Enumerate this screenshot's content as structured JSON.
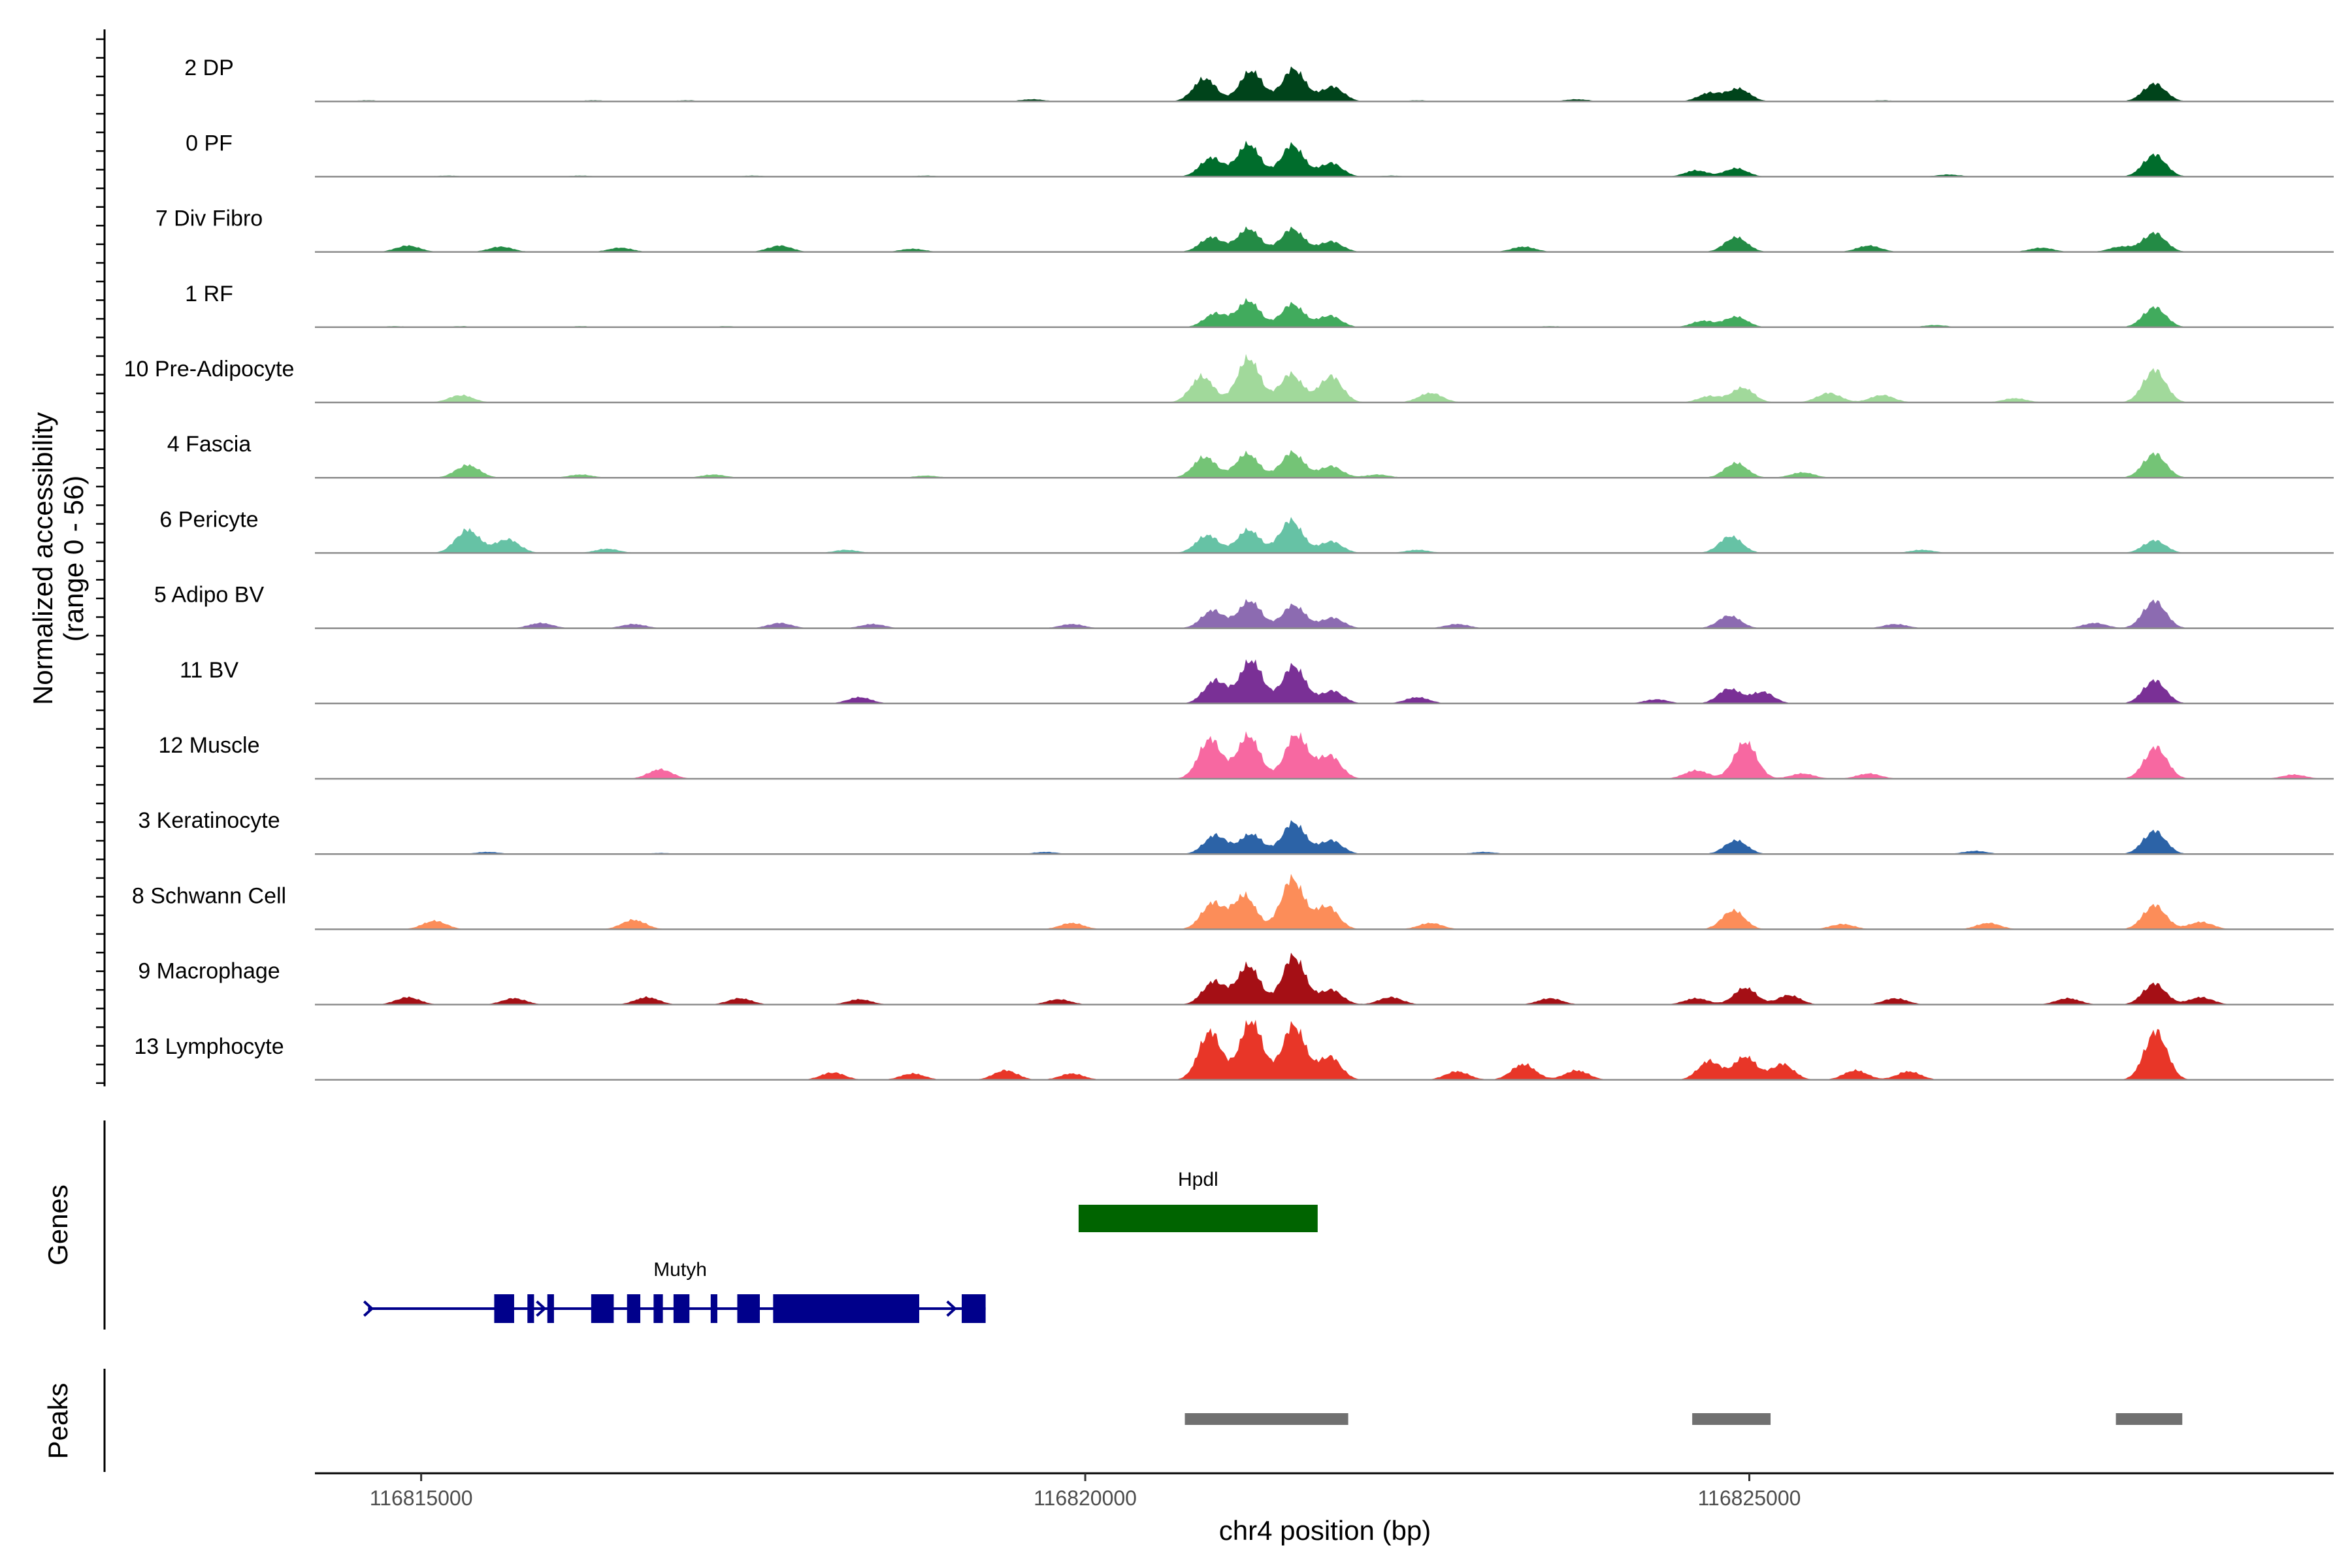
{
  "chart_data": {
    "type": "area",
    "title": "",
    "ylabel_line1": "Normalized accessibility",
    "ylabel_line2": "(range 0 - 56)",
    "ylim": [
      0,
      56
    ],
    "xlabel": "chr4 position (bp)",
    "xlim": [
      116814200,
      116829400
    ],
    "xticks": [
      {
        "value": 116815000,
        "label": "116815000"
      },
      {
        "value": 116820000,
        "label": "116820000"
      },
      {
        "value": 116825000,
        "label": "116825000"
      }
    ],
    "panel_labels": {
      "genes": "Genes",
      "peaks": "Peaks"
    },
    "tracks": [
      {
        "label": "2 DP",
        "color": "#00441b",
        "peaks": [
          [
            116820900,
            22
          ],
          [
            116821250,
            29
          ],
          [
            116821570,
            31
          ],
          [
            116821860,
            14
          ],
          [
            116824700,
            8
          ],
          [
            116824920,
            12
          ],
          [
            116828050,
            17
          ]
        ],
        "minor": [
          [
            116814600,
            1
          ],
          [
            116816300,
            1
          ],
          [
            116817000,
            1
          ],
          [
            116819600,
            2
          ],
          [
            116822500,
            1
          ],
          [
            116823700,
            2
          ],
          [
            116826000,
            1
          ]
        ]
      },
      {
        "label": "0 PF",
        "color": "#006d2c",
        "peaks": [
          [
            116820950,
            18
          ],
          [
            116821230,
            31
          ],
          [
            116821560,
            30
          ],
          [
            116821850,
            13
          ],
          [
            116824600,
            6
          ],
          [
            116824900,
            8
          ],
          [
            116828050,
            21
          ]
        ],
        "minor": [
          [
            116815200,
            1
          ],
          [
            116816200,
            1
          ],
          [
            116817500,
            1
          ],
          [
            116818800,
            1
          ],
          [
            116822300,
            1
          ],
          [
            116826500,
            2
          ]
        ]
      },
      {
        "label": "7 Div Fibro",
        "color": "#238b45",
        "peaks": [
          [
            116820950,
            14
          ],
          [
            116821230,
            22
          ],
          [
            116821560,
            22
          ],
          [
            116821850,
            10
          ],
          [
            116824900,
            14
          ],
          [
            116828050,
            18
          ]
        ],
        "minor": [
          [
            116814900,
            6
          ],
          [
            116815600,
            5
          ],
          [
            116816500,
            4
          ],
          [
            116817700,
            6
          ],
          [
            116818700,
            3
          ],
          [
            116823300,
            5
          ],
          [
            116825900,
            6
          ],
          [
            116827200,
            4
          ],
          [
            116827800,
            5
          ]
        ]
      },
      {
        "label": "1 RF",
        "color": "#41ab5d",
        "peaks": [
          [
            116820980,
            13
          ],
          [
            116821230,
            25
          ],
          [
            116821560,
            22
          ],
          [
            116821840,
            11
          ],
          [
            116824650,
            6
          ],
          [
            116824900,
            10
          ],
          [
            116828050,
            19
          ]
        ],
        "minor": [
          [
            116814800,
            1
          ],
          [
            116815300,
            1
          ],
          [
            116816200,
            1
          ],
          [
            116817300,
            1
          ],
          [
            116823500,
            1
          ],
          [
            116826400,
            2
          ]
        ]
      },
      {
        "label": "10 Pre-Adipocyte",
        "color": "#a1d99b",
        "peaks": [
          [
            116820880,
            25
          ],
          [
            116821230,
            42
          ],
          [
            116821550,
            27
          ],
          [
            116821850,
            25
          ],
          [
            116824700,
            6
          ],
          [
            116824950,
            14
          ],
          [
            116828050,
            31
          ]
        ],
        "minor": [
          [
            116815300,
            7
          ],
          [
            116822600,
            9
          ],
          [
            116825600,
            9
          ],
          [
            116826000,
            7
          ],
          [
            116827000,
            4
          ]
        ]
      },
      {
        "label": "4 Fascia",
        "color": "#74c476",
        "peaks": [
          [
            116820900,
            20
          ],
          [
            116821220,
            23
          ],
          [
            116821560,
            24
          ],
          [
            116821850,
            11
          ],
          [
            116824900,
            14
          ],
          [
            116828050,
            23
          ]
        ],
        "minor": [
          [
            116815350,
            12
          ],
          [
            116816200,
            3
          ],
          [
            116817200,
            3
          ],
          [
            116818800,
            2
          ],
          [
            116822200,
            3
          ],
          [
            116825400,
            5
          ]
        ]
      },
      {
        "label": "6 Pericyte",
        "color": "#66c2a5",
        "peaks": [
          [
            116820920,
            17
          ],
          [
            116821230,
            22
          ],
          [
            116821550,
            31
          ],
          [
            116821850,
            11
          ],
          [
            116824860,
            16
          ],
          [
            116828050,
            12
          ]
        ],
        "minor": [
          [
            116815350,
            22
          ],
          [
            116815650,
            13
          ],
          [
            116816400,
            4
          ],
          [
            116818200,
            3
          ],
          [
            116822500,
            3
          ],
          [
            116826300,
            3
          ]
        ]
      },
      {
        "label": "5 Adipo BV",
        "color": "#8c6bb1",
        "peaks": [
          [
            116820960,
            17
          ],
          [
            116821240,
            26
          ],
          [
            116821570,
            22
          ],
          [
            116821860,
            10
          ],
          [
            116824850,
            12
          ],
          [
            116828050,
            26
          ]
        ],
        "minor": [
          [
            116815900,
            5
          ],
          [
            116816600,
            4
          ],
          [
            116817700,
            5
          ],
          [
            116818400,
            4
          ],
          [
            116819900,
            4
          ],
          [
            116822800,
            4
          ],
          [
            116826100,
            4
          ],
          [
            116827600,
            5
          ]
        ]
      },
      {
        "label": "11 BV",
        "color": "#7a3096",
        "peaks": [
          [
            116820980,
            22
          ],
          [
            116821250,
            41
          ],
          [
            116821570,
            36
          ],
          [
            116821860,
            12
          ],
          [
            116824850,
            14
          ],
          [
            116825100,
            11
          ],
          [
            116828050,
            22
          ]
        ],
        "minor": [
          [
            116818300,
            6
          ],
          [
            116822500,
            6
          ],
          [
            116824300,
            4
          ]
        ]
      },
      {
        "label": "12 Muscle",
        "color": "#f768a1",
        "peaks": [
          [
            116820940,
            38
          ],
          [
            116821230,
            41
          ],
          [
            116821590,
            42
          ],
          [
            116821840,
            22
          ],
          [
            116824970,
            35
          ],
          [
            116828060,
            30
          ]
        ],
        "minor": [
          [
            116816800,
            9
          ],
          [
            116824600,
            8
          ],
          [
            116825400,
            5
          ],
          [
            116825900,
            5
          ],
          [
            116829100,
            4
          ]
        ]
      },
      {
        "label": "3 Keratinocyte",
        "color": "#2c63a7",
        "peaks": [
          [
            116820980,
            18
          ],
          [
            116821250,
            19
          ],
          [
            116821570,
            30
          ],
          [
            116821850,
            13
          ],
          [
            116824900,
            13
          ],
          [
            116828050,
            22
          ]
        ],
        "minor": [
          [
            116815500,
            2
          ],
          [
            116816800,
            1
          ],
          [
            116819700,
            2
          ],
          [
            116823000,
            2
          ],
          [
            116826700,
            3
          ]
        ]
      },
      {
        "label": "8 Schwann Cell",
        "color": "#fc8d59",
        "peaks": [
          [
            116820960,
            25
          ],
          [
            116821200,
            32
          ],
          [
            116821560,
            48
          ],
          [
            116821820,
            22
          ],
          [
            116824880,
            18
          ],
          [
            116828050,
            23
          ]
        ],
        "minor": [
          [
            116815100,
            8
          ],
          [
            116816600,
            9
          ],
          [
            116819900,
            6
          ],
          [
            116822600,
            6
          ],
          [
            116825700,
            5
          ],
          [
            116826800,
            6
          ],
          [
            116828400,
            7
          ]
        ]
      },
      {
        "label": "9 Macrophage",
        "color": "#a50f15",
        "peaks": [
          [
            116820970,
            22
          ],
          [
            116821230,
            37
          ],
          [
            116821570,
            46
          ],
          [
            116821850,
            14
          ],
          [
            116824970,
            16
          ],
          [
            116825300,
            9
          ],
          [
            116828050,
            20
          ]
        ],
        "minor": [
          [
            116814900,
            7
          ],
          [
            116815700,
            6
          ],
          [
            116816700,
            7
          ],
          [
            116817400,
            6
          ],
          [
            116818300,
            5
          ],
          [
            116819800,
            5
          ],
          [
            116822300,
            7
          ],
          [
            116823500,
            6
          ],
          [
            116824600,
            6
          ],
          [
            116826100,
            6
          ],
          [
            116827400,
            6
          ],
          [
            116828400,
            7
          ]
        ]
      },
      {
        "label": "13 Lymphocyte",
        "color": "#e83628",
        "peaks": [
          [
            116820940,
            46
          ],
          [
            116821250,
            56
          ],
          [
            116821570,
            52
          ],
          [
            116821840,
            22
          ],
          [
            116824700,
            18
          ],
          [
            116824970,
            22
          ],
          [
            116825250,
            15
          ],
          [
            116828060,
            46
          ]
        ],
        "minor": [
          [
            116818100,
            7
          ],
          [
            116818700,
            6
          ],
          [
            116819400,
            9
          ],
          [
            116819900,
            6
          ],
          [
            116822800,
            8
          ],
          [
            116823300,
            15
          ],
          [
            116823700,
            9
          ],
          [
            116825800,
            9
          ],
          [
            116826200,
            8
          ]
        ]
      }
    ],
    "genes": [
      {
        "name": "Hpdl",
        "color": "#006400",
        "start": 116819950,
        "end": 116821750,
        "strand": "+",
        "exons": [
          [
            116819950,
            116821750
          ]
        ]
      },
      {
        "name": "Mutyh",
        "color": "#00008b",
        "start": 116814600,
        "end": 116819250,
        "strand": "+",
        "exons": [
          [
            116815550,
            116815700
          ],
          [
            116815800,
            116815850
          ],
          [
            116815950,
            116816000
          ],
          [
            116816280,
            116816450
          ],
          [
            116816550,
            116816650
          ],
          [
            116816750,
            116816820
          ],
          [
            116816900,
            116817020
          ],
          [
            116817180,
            116817230
          ],
          [
            116817380,
            116817550
          ],
          [
            116817650,
            116818750
          ],
          [
            116819070,
            116819250
          ]
        ]
      }
    ],
    "peaks": [
      {
        "start": 116820750,
        "end": 116821980
      },
      {
        "start": 116824570,
        "end": 116825160
      },
      {
        "start": 116827760,
        "end": 116828260
      }
    ],
    "peak_color": "#707070"
  }
}
